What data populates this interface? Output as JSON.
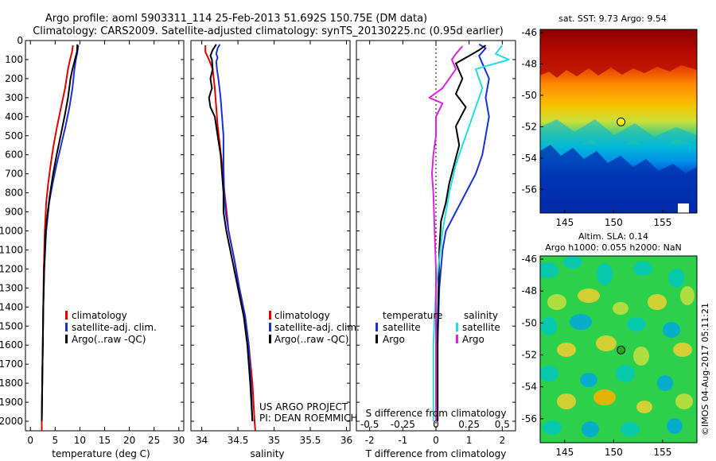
{
  "header": {
    "title_line1": "Argo profile: aoml 5903311_114 25-Feb-2013 51.692S 150.75E (DM data)",
    "title_line2": "Climatology: CARS2009. Satellite-adjusted climatology: synTS_20130225.nc (0.95d earlier)"
  },
  "colors": {
    "climatology": "#e00000",
    "satellite": "#1a2fd6",
    "argo": "#000000",
    "sal_satellite": "#22dddd",
    "sal_argo": "#e020e0"
  },
  "project": {
    "line1": "US ARGO PROJECT",
    "line2": "PI: DEAN ROEMMICH"
  },
  "stamp": "©IMOS 04-Aug-2017 05:11:21",
  "chart_data": [
    {
      "type": "line",
      "id": "temperature",
      "xlabel": "temperature (deg C)",
      "ylabel": "",
      "xlim": [
        -1,
        31
      ],
      "ylim": [
        2050,
        0
      ],
      "xticks": [
        0,
        5,
        10,
        15,
        20,
        25,
        30
      ],
      "yticks": [
        0,
        100,
        200,
        300,
        400,
        500,
        600,
        700,
        800,
        900,
        1000,
        1100,
        1200,
        1300,
        1400,
        1500,
        1600,
        1700,
        1800,
        1900,
        2000
      ],
      "legend": {
        "position": "lower-middle",
        "entries": [
          "climatology",
          "satellite-adj. clim.",
          "Argo(..raw -QC)"
        ]
      },
      "series": [
        {
          "name": "climatology",
          "color": "#e00000",
          "points": [
            [
              8.6,
              25
            ],
            [
              8.4,
              60
            ],
            [
              8.0,
              100
            ],
            [
              7.6,
              150
            ],
            [
              7.0,
              250
            ],
            [
              6.2,
              350
            ],
            [
              5.4,
              450
            ],
            [
              4.7,
              550
            ],
            [
              4.1,
              650
            ],
            [
              3.6,
              750
            ],
            [
              3.2,
              850
            ],
            [
              2.9,
              1000
            ],
            [
              2.7,
              1200
            ],
            [
              2.6,
              1400
            ],
            [
              2.5,
              1600
            ],
            [
              2.4,
              1800
            ],
            [
              2.3,
              2000
            ],
            [
              2.3,
              2050
            ]
          ]
        },
        {
          "name": "satellite-adj. clim.",
          "color": "#1a2fd6",
          "points": [
            [
              9.7,
              25
            ],
            [
              9.5,
              60
            ],
            [
              9.2,
              100
            ],
            [
              8.9,
              150
            ],
            [
              8.5,
              250
            ],
            [
              7.9,
              350
            ],
            [
              7.1,
              450
            ],
            [
              6.2,
              550
            ],
            [
              5.3,
              650
            ],
            [
              4.5,
              750
            ],
            [
              3.8,
              850
            ],
            [
              3.2,
              1000
            ],
            [
              2.8,
              1200
            ],
            [
              2.6,
              1400
            ],
            [
              2.5,
              1600
            ],
            [
              2.4,
              1800
            ],
            [
              2.3,
              2000
            ]
          ]
        },
        {
          "name": "Argo(..raw -QC)",
          "color": "#000000",
          "points": [
            [
              9.5,
              20
            ],
            [
              9.4,
              60
            ],
            [
              9.0,
              100
            ],
            [
              8.5,
              150
            ],
            [
              8.1,
              200
            ],
            [
              7.6,
              300
            ],
            [
              6.9,
              400
            ],
            [
              6.1,
              500
            ],
            [
              5.3,
              600
            ],
            [
              4.6,
              700
            ],
            [
              4.0,
              800
            ],
            [
              3.5,
              900
            ],
            [
              3.1,
              1000
            ],
            [
              2.8,
              1200
            ],
            [
              2.6,
              1400
            ],
            [
              2.5,
              1600
            ],
            [
              2.4,
              1800
            ],
            [
              2.3,
              2000
            ]
          ]
        }
      ]
    },
    {
      "type": "line",
      "id": "salinity",
      "xlabel": "salinity",
      "ylabel": "",
      "xlim": [
        33.85,
        36.05
      ],
      "ylim": [
        2050,
        0
      ],
      "xticks": [
        34,
        34.5,
        35,
        35.5,
        36
      ],
      "legend": {
        "position": "lower-middle",
        "entries": [
          "climatology",
          "satellite-adj. clim.",
          "Argo(..raw -QC)"
        ]
      },
      "series": [
        {
          "name": "climatology",
          "color": "#e00000",
          "points": [
            [
              34.05,
              25
            ],
            [
              34.05,
              60
            ],
            [
              34.1,
              100
            ],
            [
              34.15,
              150
            ],
            [
              34.18,
              250
            ],
            [
              34.2,
              350
            ],
            [
              34.22,
              450
            ],
            [
              34.25,
              550
            ],
            [
              34.28,
              650
            ],
            [
              34.3,
              750
            ],
            [
              34.33,
              850
            ],
            [
              34.37,
              1000
            ],
            [
              34.45,
              1150
            ],
            [
              34.52,
              1300
            ],
            [
              34.6,
              1450
            ],
            [
              34.65,
              1600
            ],
            [
              34.7,
              1800
            ],
            [
              34.73,
              2000
            ],
            [
              34.74,
              2050
            ]
          ]
        },
        {
          "name": "satellite-adj. clim.",
          "color": "#1a2fd6",
          "points": [
            [
              34.25,
              20
            ],
            [
              34.22,
              40
            ],
            [
              34.2,
              70
            ],
            [
              34.22,
              90
            ],
            [
              34.2,
              110
            ],
            [
              34.21,
              150
            ],
            [
              34.23,
              200
            ],
            [
              34.26,
              300
            ],
            [
              34.28,
              400
            ],
            [
              34.3,
              500
            ],
            [
              34.3,
              650
            ],
            [
              34.31,
              800
            ],
            [
              34.33,
              900
            ],
            [
              34.37,
              1000
            ],
            [
              34.45,
              1150
            ],
            [
              34.52,
              1300
            ],
            [
              34.6,
              1450
            ],
            [
              34.65,
              1600
            ],
            [
              34.68,
              1800
            ],
            [
              34.7,
              2000
            ]
          ]
        },
        {
          "name": "Argo(..raw -QC)",
          "color": "#000000",
          "points": [
            [
              34.2,
              20
            ],
            [
              34.15,
              50
            ],
            [
              34.12,
              80
            ],
            [
              34.14,
              100
            ],
            [
              34.15,
              150
            ],
            [
              34.12,
              200
            ],
            [
              34.14,
              250
            ],
            [
              34.1,
              300
            ],
            [
              34.12,
              350
            ],
            [
              34.18,
              400
            ],
            [
              34.22,
              500
            ],
            [
              34.26,
              600
            ],
            [
              34.28,
              700
            ],
            [
              34.3,
              800
            ],
            [
              34.3,
              900
            ],
            [
              34.34,
              1000
            ],
            [
              34.42,
              1150
            ],
            [
              34.5,
              1300
            ],
            [
              34.58,
              1450
            ],
            [
              34.63,
              1600
            ],
            [
              34.67,
              1800
            ],
            [
              34.7,
              2000
            ]
          ]
        }
      ]
    },
    {
      "type": "line",
      "id": "differences",
      "xlabel": "T difference from climatology",
      "xlabel_top": "S difference from climatology",
      "xlim_T": [
        -2.4,
        2.4
      ],
      "xticks_T": [
        -2,
        -1,
        0,
        1,
        2
      ],
      "xticks_S": [
        -0.5,
        -0.25,
        0,
        0.25,
        0.5
      ],
      "ylim": [
        2050,
        0
      ],
      "legend": {
        "position": "lower-middle",
        "temperature_header": "temperature",
        "salinity_header": "salinity",
        "entries": [
          "satellite",
          "Argo",
          "satellite",
          "Argo"
        ]
      },
      "series": [
        {
          "name": "temperature satellite",
          "color": "#1a2fd6",
          "points": [
            [
              1.3,
              20
            ],
            [
              1.5,
              40
            ],
            [
              1.3,
              80
            ],
            [
              1.4,
              120
            ],
            [
              1.6,
              200
            ],
            [
              1.5,
              300
            ],
            [
              1.6,
              400
            ],
            [
              1.5,
              500
            ],
            [
              1.4,
              600
            ],
            [
              1.2,
              700
            ],
            [
              0.9,
              800
            ],
            [
              0.6,
              900
            ],
            [
              0.3,
              1000
            ],
            [
              0.2,
              1100
            ],
            [
              0.1,
              1300
            ],
            [
              0.05,
              1600
            ],
            [
              0.05,
              2000
            ]
          ]
        },
        {
          "name": "temperature Argo",
          "color": "#000000",
          "points": [
            [
              1.5,
              25
            ],
            [
              1.3,
              50
            ],
            [
              1.0,
              80
            ],
            [
              0.6,
              120
            ],
            [
              0.8,
              200
            ],
            [
              0.6,
              280
            ],
            [
              0.9,
              350
            ],
            [
              0.6,
              450
            ],
            [
              0.7,
              550
            ],
            [
              0.55,
              650
            ],
            [
              0.4,
              750
            ],
            [
              0.3,
              850
            ],
            [
              0.15,
              950
            ],
            [
              0.1,
              1100
            ],
            [
              0.08,
              1300
            ],
            [
              0.05,
              1500
            ],
            [
              0.05,
              1800
            ],
            [
              0.05,
              2000
            ]
          ]
        },
        {
          "name": "salinity satellite",
          "color": "#22dddd",
          "points": [
            [
              0.5,
              25
            ],
            [
              0.45,
              70
            ],
            [
              0.55,
              100
            ],
            [
              0.3,
              150
            ],
            [
              0.35,
              250
            ],
            [
              0.3,
              350
            ],
            [
              0.25,
              450
            ],
            [
              0.2,
              550
            ],
            [
              0.15,
              650
            ],
            [
              0.1,
              800
            ],
            [
              0.05,
              1000
            ],
            [
              0.0,
              1300
            ],
            [
              -0.02,
              1600
            ],
            [
              -0.02,
              1900
            ],
            [
              -0.02,
              2000
            ]
          ]
        },
        {
          "name": "salinity Argo",
          "color": "#e020e0",
          "points": [
            [
              0.2,
              30
            ],
            [
              0.15,
              70
            ],
            [
              0.12,
              100
            ],
            [
              0.15,
              150
            ],
            [
              0.05,
              250
            ],
            [
              -0.05,
              300
            ],
            [
              0.05,
              330
            ],
            [
              0.0,
              400
            ],
            [
              0.0,
              500
            ],
            [
              -0.02,
              600
            ],
            [
              -0.03,
              700
            ],
            [
              -0.02,
              800
            ],
            [
              -0.01,
              1000
            ],
            [
              0.0,
              1200
            ],
            [
              0.0,
              1500
            ],
            [
              0.0,
              1800
            ],
            [
              0.0,
              2000
            ]
          ]
        }
      ]
    },
    {
      "type": "heatmap",
      "id": "sst_map",
      "title": "sat. SST: 9.73 Argo: 9.54",
      "xlim": [
        142.5,
        158.5
      ],
      "ylim": [
        -57.5,
        -45.8
      ],
      "xticks": [
        145,
        150,
        155
      ],
      "yticks": [
        -46,
        -48,
        -50,
        -52,
        -54,
        -56
      ],
      "marker": {
        "lon": 150.75,
        "lat": -51.692,
        "color": "#ffee00"
      }
    },
    {
      "type": "heatmap",
      "id": "sla_map",
      "title_line1": "Altim. SLA: 0.14",
      "title_line2": "Argo h1000: 0.055 h2000: NaN",
      "xlim": [
        142.5,
        158.5
      ],
      "ylim": [
        -57.5,
        -45.8
      ],
      "xticks": [
        145,
        150,
        155
      ],
      "yticks": [
        -46,
        -48,
        -50,
        -52,
        -54,
        -56
      ],
      "marker": {
        "lon": 150.75,
        "lat": -51.692,
        "color": "#22aa22"
      }
    }
  ]
}
